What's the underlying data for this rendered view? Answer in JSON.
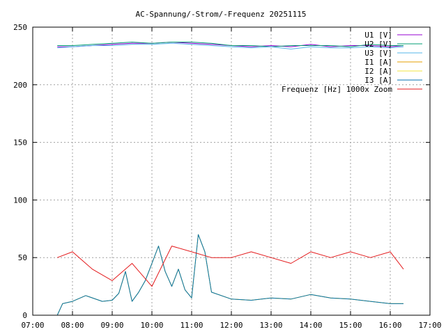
{
  "chart_data": {
    "type": "line",
    "title": "AC-Spannung/-Strom/-Frequenz 20251115",
    "xlabel": "",
    "ylabel": "",
    "xlim": [
      "07:00",
      "17:00"
    ],
    "ylim": [
      0,
      250
    ],
    "x_ticks": [
      "07:00",
      "08:00",
      "09:00",
      "10:00",
      "11:00",
      "12:00",
      "13:00",
      "14:00",
      "15:00",
      "16:00",
      "17:00"
    ],
    "y_ticks": [
      "0",
      "50",
      "100",
      "150",
      "200",
      "250"
    ],
    "grid": true,
    "legend_position": "top-right",
    "series": [
      {
        "name": "U1 [V]",
        "color": "#9400d3",
        "x": [
          "07:37",
          "08:00",
          "08:30",
          "09:00",
          "09:30",
          "10:00",
          "10:30",
          "11:00",
          "11:30",
          "12:00",
          "12:30",
          "13:00",
          "13:30",
          "14:00",
          "14:30",
          "15:00",
          "15:30",
          "16:00",
          "16:20"
        ],
        "values": [
          233,
          233,
          234,
          235,
          236,
          236,
          237,
          236,
          235,
          234,
          233,
          234,
          233,
          235,
          233,
          234,
          234,
          233,
          234
        ]
      },
      {
        "name": "U2 [V]",
        "color": "#009e73",
        "x": [
          "07:37",
          "08:00",
          "08:30",
          "09:00",
          "09:30",
          "10:00",
          "10:30",
          "11:00",
          "11:30",
          "12:00",
          "12:30",
          "13:00",
          "13:30",
          "14:00",
          "14:30",
          "15:00",
          "15:30",
          "16:00",
          "16:20"
        ],
        "values": [
          234,
          234,
          235,
          236,
          237,
          236,
          237,
          237,
          236,
          234,
          234,
          233,
          234,
          234,
          234,
          233,
          235,
          234,
          234
        ]
      },
      {
        "name": "U3 [V]",
        "color": "#56b4e9",
        "x": [
          "07:37",
          "08:00",
          "08:30",
          "09:00",
          "09:30",
          "10:00",
          "10:30",
          "11:00",
          "11:30",
          "12:00",
          "12:30",
          "13:00",
          "13:30",
          "14:00",
          "14:30",
          "15:00",
          "15:30",
          "16:00",
          "16:20"
        ],
        "values": [
          232,
          233,
          234,
          234,
          235,
          235,
          236,
          235,
          234,
          233,
          232,
          233,
          231,
          233,
          232,
          232,
          233,
          232,
          233
        ]
      },
      {
        "name": "I1 [A]",
        "color": "#e69f00",
        "x": [
          "07:37",
          "07:45",
          "08:00",
          "08:20",
          "08:45",
          "09:00",
          "09:10",
          "09:20",
          "09:30",
          "09:40",
          "09:50",
          "10:00",
          "10:10",
          "10:20",
          "10:30",
          "10:40",
          "10:50",
          "11:00",
          "11:10",
          "11:20",
          "11:30",
          "12:00",
          "12:30",
          "13:00",
          "13:30",
          "14:00",
          "14:30",
          "15:00",
          "15:30",
          "16:00",
          "16:20"
        ],
        "values": [
          0,
          10,
          12,
          17,
          12,
          13,
          19,
          38,
          12,
          20,
          30,
          45,
          60,
          38,
          25,
          40,
          22,
          15,
          70,
          55,
          20,
          14,
          13,
          15,
          14,
          18,
          15,
          14,
          12,
          10,
          10
        ]
      },
      {
        "name": "I2 [A]",
        "color": "#f0e442",
        "x": [
          "07:37",
          "07:45",
          "08:00",
          "08:20",
          "08:45",
          "09:00",
          "09:10",
          "09:20",
          "09:30",
          "09:40",
          "09:50",
          "10:00",
          "10:10",
          "10:20",
          "10:30",
          "10:40",
          "10:50",
          "11:00",
          "11:10",
          "11:20",
          "11:30",
          "12:00",
          "12:30",
          "13:00",
          "13:30",
          "14:00",
          "14:30",
          "15:00",
          "15:30",
          "16:00",
          "16:20"
        ],
        "values": [
          0,
          10,
          12,
          17,
          12,
          13,
          19,
          38,
          12,
          20,
          30,
          45,
          60,
          38,
          25,
          40,
          22,
          15,
          70,
          55,
          20,
          14,
          13,
          15,
          14,
          18,
          15,
          14,
          12,
          10,
          10
        ]
      },
      {
        "name": "I3 [A]",
        "color": "#0072b2",
        "x": [
          "07:37",
          "07:45",
          "08:00",
          "08:20",
          "08:45",
          "09:00",
          "09:10",
          "09:20",
          "09:30",
          "09:40",
          "09:50",
          "10:00",
          "10:10",
          "10:20",
          "10:30",
          "10:40",
          "10:50",
          "11:00",
          "11:10",
          "11:20",
          "11:30",
          "12:00",
          "12:30",
          "13:00",
          "13:30",
          "14:00",
          "14:30",
          "15:00",
          "15:30",
          "16:00",
          "16:20"
        ],
        "values": [
          0,
          10,
          12,
          17,
          12,
          13,
          19,
          38,
          12,
          20,
          30,
          45,
          60,
          38,
          25,
          40,
          22,
          15,
          70,
          55,
          20,
          14,
          13,
          15,
          14,
          18,
          15,
          14,
          12,
          10,
          10
        ]
      },
      {
        "name": "Frequenz [Hz] 1000x Zoom",
        "color": "#e41a1c",
        "x": [
          "07:37",
          "08:00",
          "08:30",
          "09:00",
          "09:30",
          "10:00",
          "10:30",
          "11:00",
          "11:30",
          "12:00",
          "12:30",
          "13:00",
          "13:30",
          "14:00",
          "14:30",
          "15:00",
          "15:30",
          "16:00",
          "16:20"
        ],
        "values": [
          50,
          55,
          40,
          30,
          45,
          25,
          60,
          55,
          50,
          50,
          55,
          50,
          45,
          55,
          50,
          55,
          50,
          55,
          40
        ],
        "range": [
          10,
          100
        ]
      }
    ]
  }
}
